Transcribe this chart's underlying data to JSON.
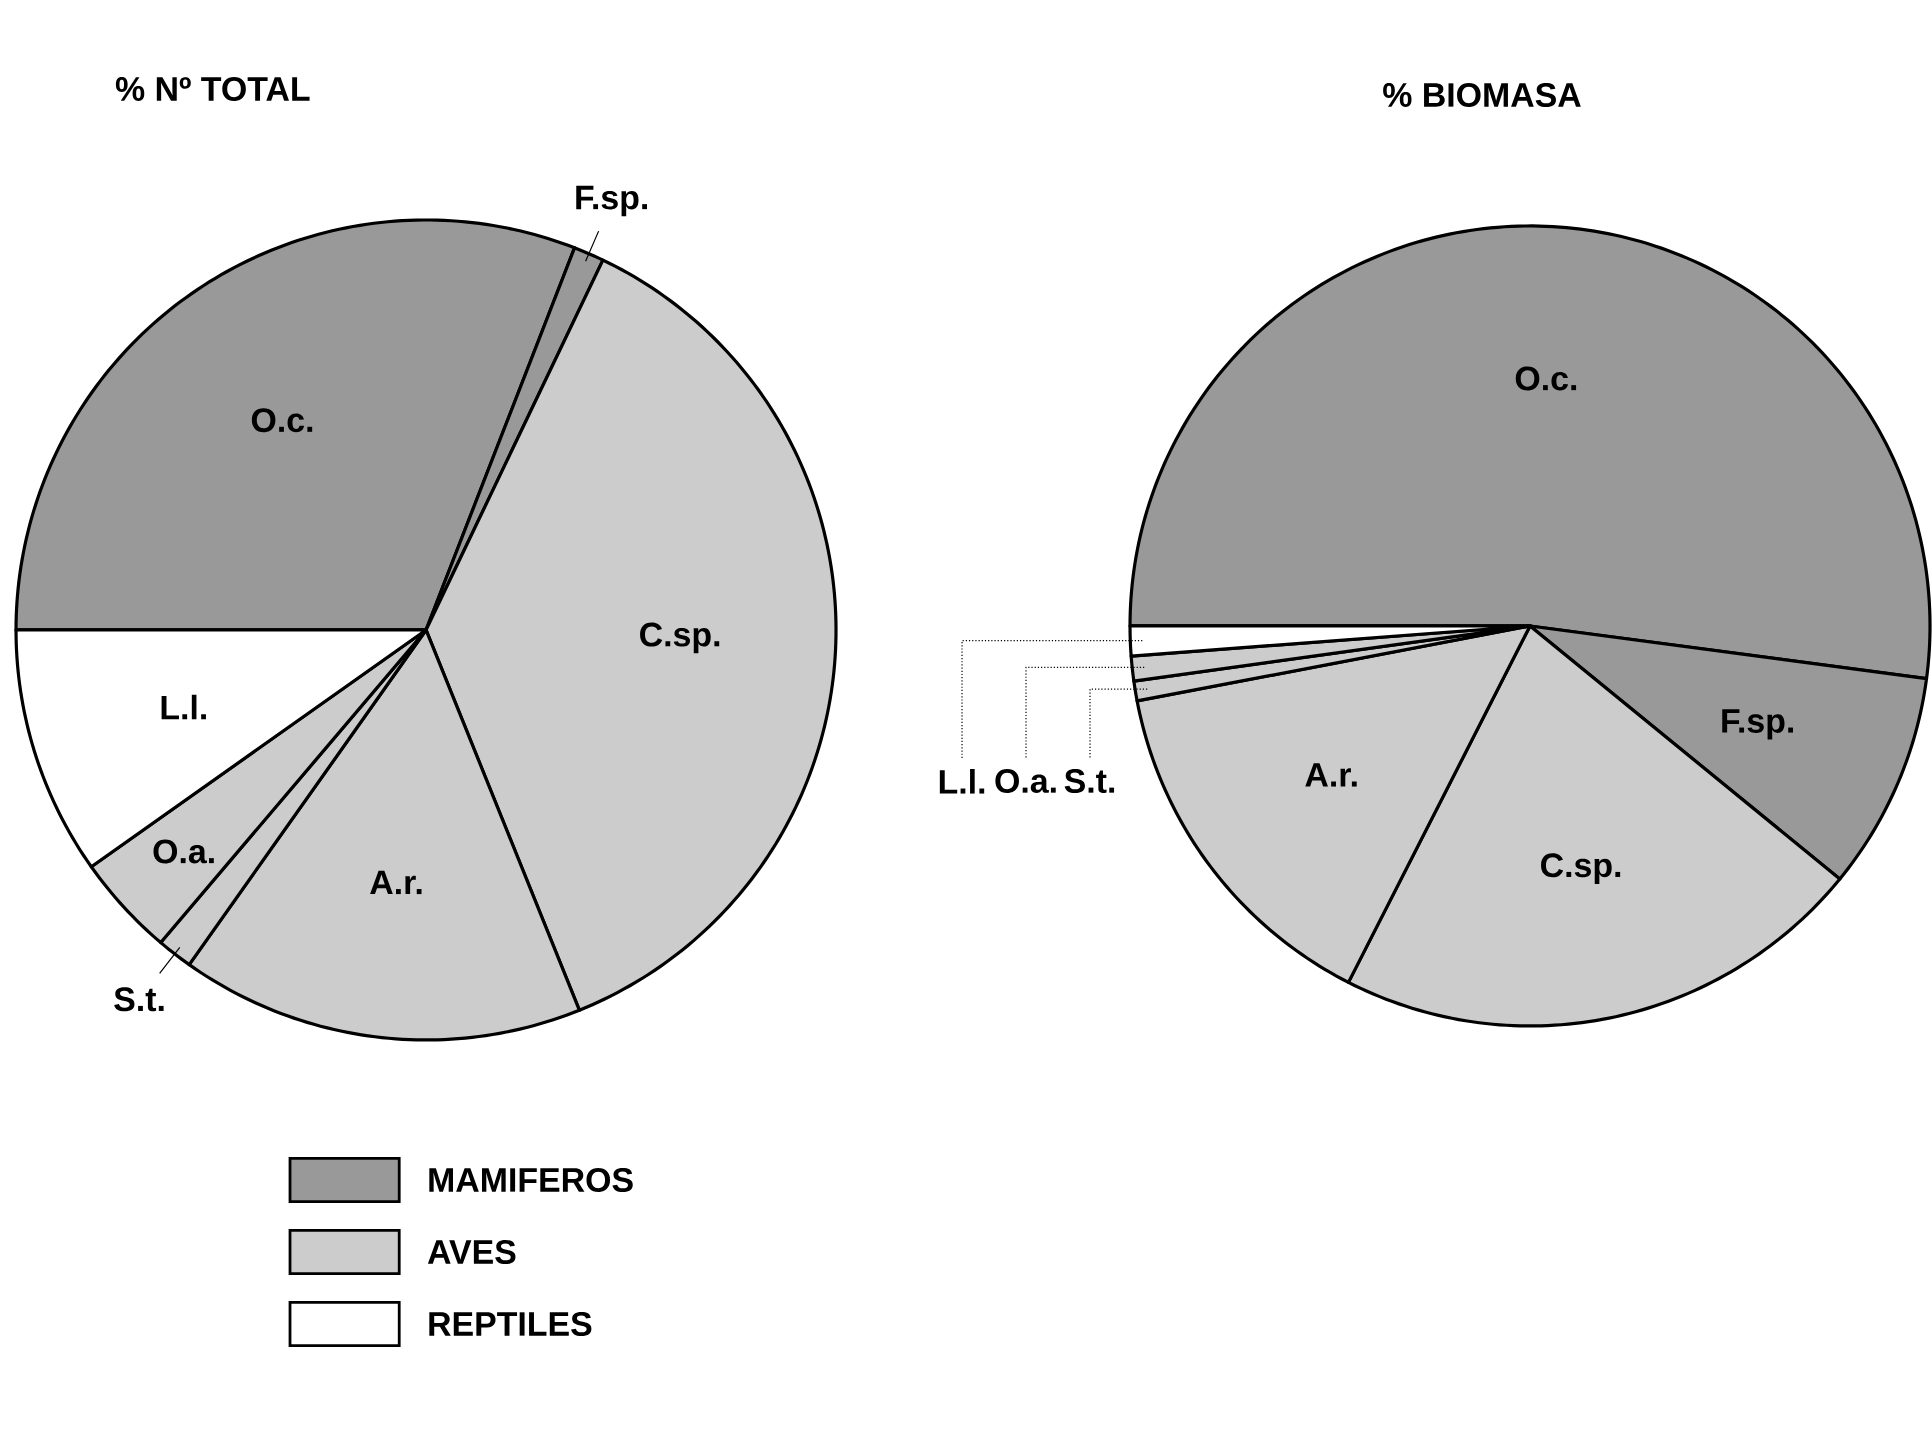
{
  "chart_data": [
    {
      "type": "pie",
      "title": "% Nº TOTAL",
      "categories": [
        "O.c.",
        "F.sp.",
        "C.sp.",
        "A.r.",
        "S.t.",
        "O.a.",
        "L.l."
      ],
      "values": [
        30.9,
        1.2,
        36.8,
        15.9,
        1.4,
        4.0,
        9.8
      ],
      "colors": [
        "#999999",
        "#999999",
        "#cccccc",
        "#cccccc",
        "#cccccc",
        "#cccccc",
        "#ffffff"
      ]
    },
    {
      "type": "pie",
      "title": "% BIOMASA",
      "categories": [
        "O.c.",
        "F.sp.",
        "C.sp.",
        "A.r.",
        "S.t.",
        "O.a.",
        "L.l."
      ],
      "values": [
        52.1,
        8.8,
        21.6,
        14.5,
        0.8,
        1.0,
        1.2
      ],
      "colors": [
        "#999999",
        "#999999",
        "#cccccc",
        "#cccccc",
        "#cccccc",
        "#cccccc",
        "#ffffff"
      ]
    },
    {
      "type": "other",
      "categories": [
        "MAMIFEROS",
        "AVES",
        "REPTILES"
      ],
      "colors": [
        "#999999",
        "#cccccc",
        "#ffffff"
      ]
    }
  ]
}
